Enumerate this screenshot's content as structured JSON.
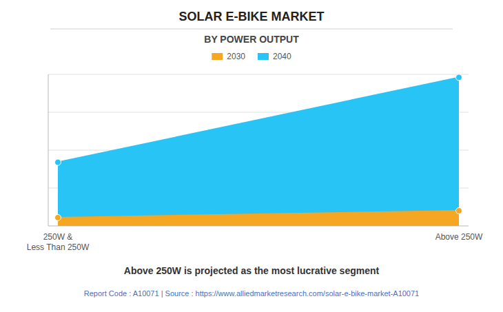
{
  "chart_data": {
    "type": "area",
    "title": "SOLAR E-BIKE MARKET",
    "subtitle": "BY POWER OUTPUT",
    "categories": [
      "250W &\nLess Than 250W",
      "Above 250W"
    ],
    "series": [
      {
        "name": "2030",
        "values": [
          0.055,
          0.1
        ],
        "color": "#F5A623"
      },
      {
        "name": "2040",
        "values": [
          0.42,
          0.98
        ],
        "color": "#29C4F6"
      }
    ],
    "ylim": [
      0,
      1.0
    ],
    "yticks": [
      0.25,
      0.5,
      0.75,
      1.0
    ],
    "grid": true,
    "tick_labels": "x",
    "legend": "top",
    "marker": "circle",
    "footer": "Above 250W is projected as the most lucrative segment",
    "source": "Report Code : A10071  |  Source : https://www.alliedmarketresearch.com/solar-e-bike-market-A10071"
  }
}
